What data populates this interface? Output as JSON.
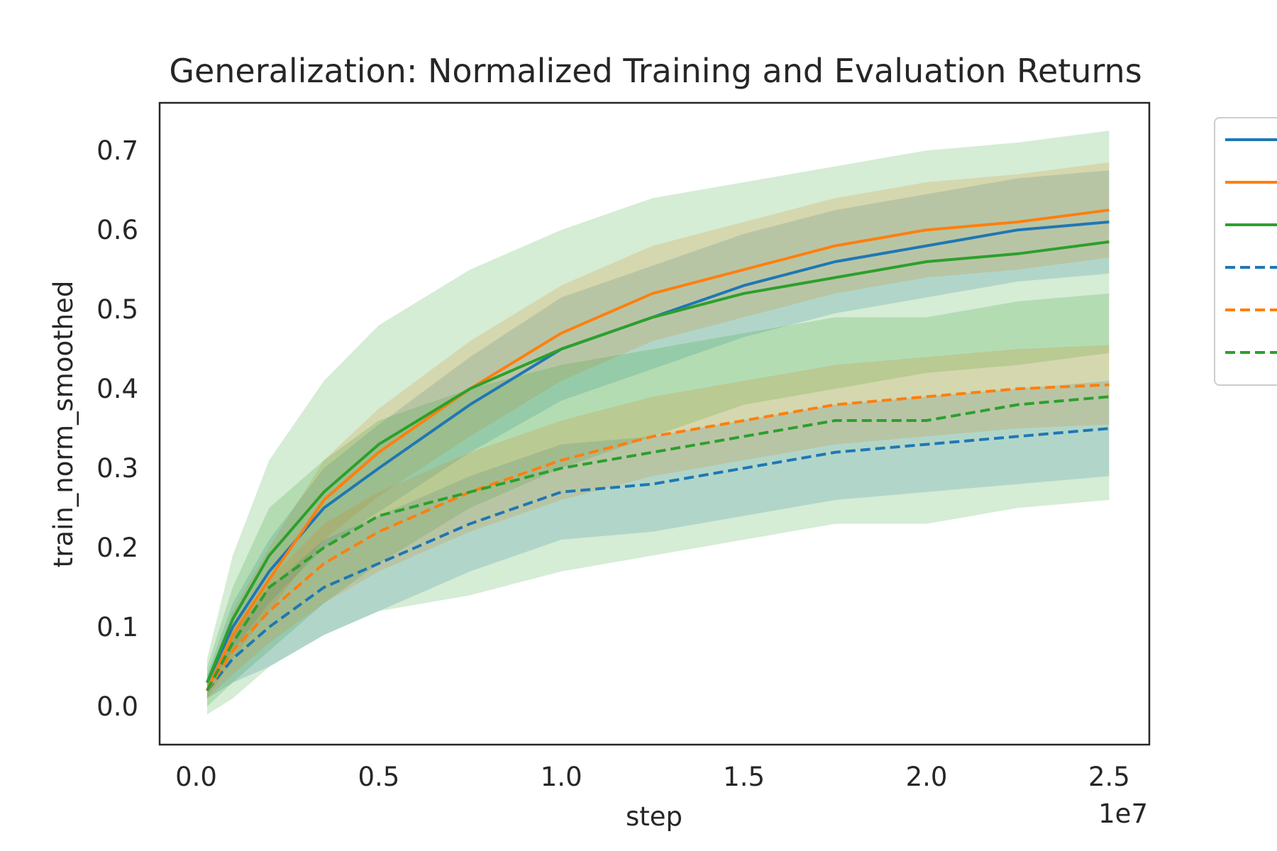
{
  "chart_data": {
    "type": "line",
    "title": "Generalization: Normalized Training and Evaluation Returns",
    "xlabel": "step",
    "ylabel": "train_norm_smoothed",
    "x_offset_label": "1e7",
    "xlim": [
      -0.1,
      2.61
    ],
    "ylim": [
      -0.048,
      0.76
    ],
    "x_ticks": [
      0.0,
      0.5,
      1.0,
      1.5,
      2.0,
      2.5
    ],
    "x_tick_labels": [
      "0.0",
      "0.5",
      "1.0",
      "1.5",
      "2.0",
      "2.5"
    ],
    "y_ticks": [
      0.0,
      0.1,
      0.2,
      0.3,
      0.4,
      0.5,
      0.6,
      0.7
    ],
    "y_tick_labels": [
      "0.0",
      "0.1",
      "0.2",
      "0.3",
      "0.4",
      "0.5",
      "0.6",
      "0.7"
    ],
    "grid": false,
    "legend_position": "upper right, outside the plot",
    "x": [
      0.03,
      0.1,
      0.2,
      0.35,
      0.5,
      0.75,
      1.0,
      1.25,
      1.5,
      1.75,
      2.0,
      2.25,
      2.5
    ],
    "series": [
      {
        "color": "#1f77b4",
        "dash": "solid",
        "values": [
          0.03,
          0.1,
          0.17,
          0.25,
          0.3,
          0.38,
          0.45,
          0.49,
          0.53,
          0.56,
          0.58,
          0.6,
          0.61
        ],
        "band_width": [
          0.01,
          0.03,
          0.04,
          0.05,
          0.055,
          0.06,
          0.065,
          0.065,
          0.065,
          0.065,
          0.065,
          0.065,
          0.065
        ]
      },
      {
        "color": "#ff7f0e",
        "dash": "solid",
        "values": [
          0.02,
          0.09,
          0.16,
          0.26,
          0.32,
          0.4,
          0.47,
          0.52,
          0.55,
          0.58,
          0.6,
          0.61,
          0.625
        ],
        "band_width": [
          0.01,
          0.03,
          0.04,
          0.05,
          0.055,
          0.06,
          0.06,
          0.06,
          0.06,
          0.06,
          0.06,
          0.06,
          0.06
        ]
      },
      {
        "color": "#2ca02c",
        "dash": "solid",
        "values": [
          0.03,
          0.11,
          0.19,
          0.27,
          0.33,
          0.4,
          0.45,
          0.49,
          0.52,
          0.54,
          0.56,
          0.57,
          0.585
        ],
        "band_width": [
          0.03,
          0.08,
          0.12,
          0.14,
          0.15,
          0.15,
          0.15,
          0.15,
          0.14,
          0.14,
          0.14,
          0.14,
          0.14
        ]
      },
      {
        "color": "#1f77b4",
        "dash": "dashed",
        "values": [
          0.02,
          0.06,
          0.1,
          0.15,
          0.18,
          0.23,
          0.27,
          0.28,
          0.3,
          0.32,
          0.33,
          0.34,
          0.35
        ],
        "band_width": [
          0.01,
          0.03,
          0.05,
          0.06,
          0.06,
          0.06,
          0.06,
          0.06,
          0.06,
          0.06,
          0.06,
          0.06,
          0.06
        ]
      },
      {
        "color": "#ff7f0e",
        "dash": "dashed",
        "values": [
          0.02,
          0.07,
          0.12,
          0.18,
          0.22,
          0.27,
          0.31,
          0.34,
          0.36,
          0.38,
          0.39,
          0.4,
          0.405
        ],
        "band_width": [
          0.01,
          0.03,
          0.04,
          0.05,
          0.05,
          0.05,
          0.05,
          0.05,
          0.05,
          0.05,
          0.05,
          0.05,
          0.05
        ]
      },
      {
        "color": "#2ca02c",
        "dash": "dashed",
        "values": [
          0.02,
          0.08,
          0.15,
          0.2,
          0.24,
          0.27,
          0.3,
          0.32,
          0.34,
          0.36,
          0.36,
          0.38,
          0.39
        ],
        "band_width": [
          0.03,
          0.07,
          0.1,
          0.11,
          0.12,
          0.13,
          0.13,
          0.13,
          0.13,
          0.13,
          0.13,
          0.13,
          0.13
        ]
      }
    ]
  }
}
